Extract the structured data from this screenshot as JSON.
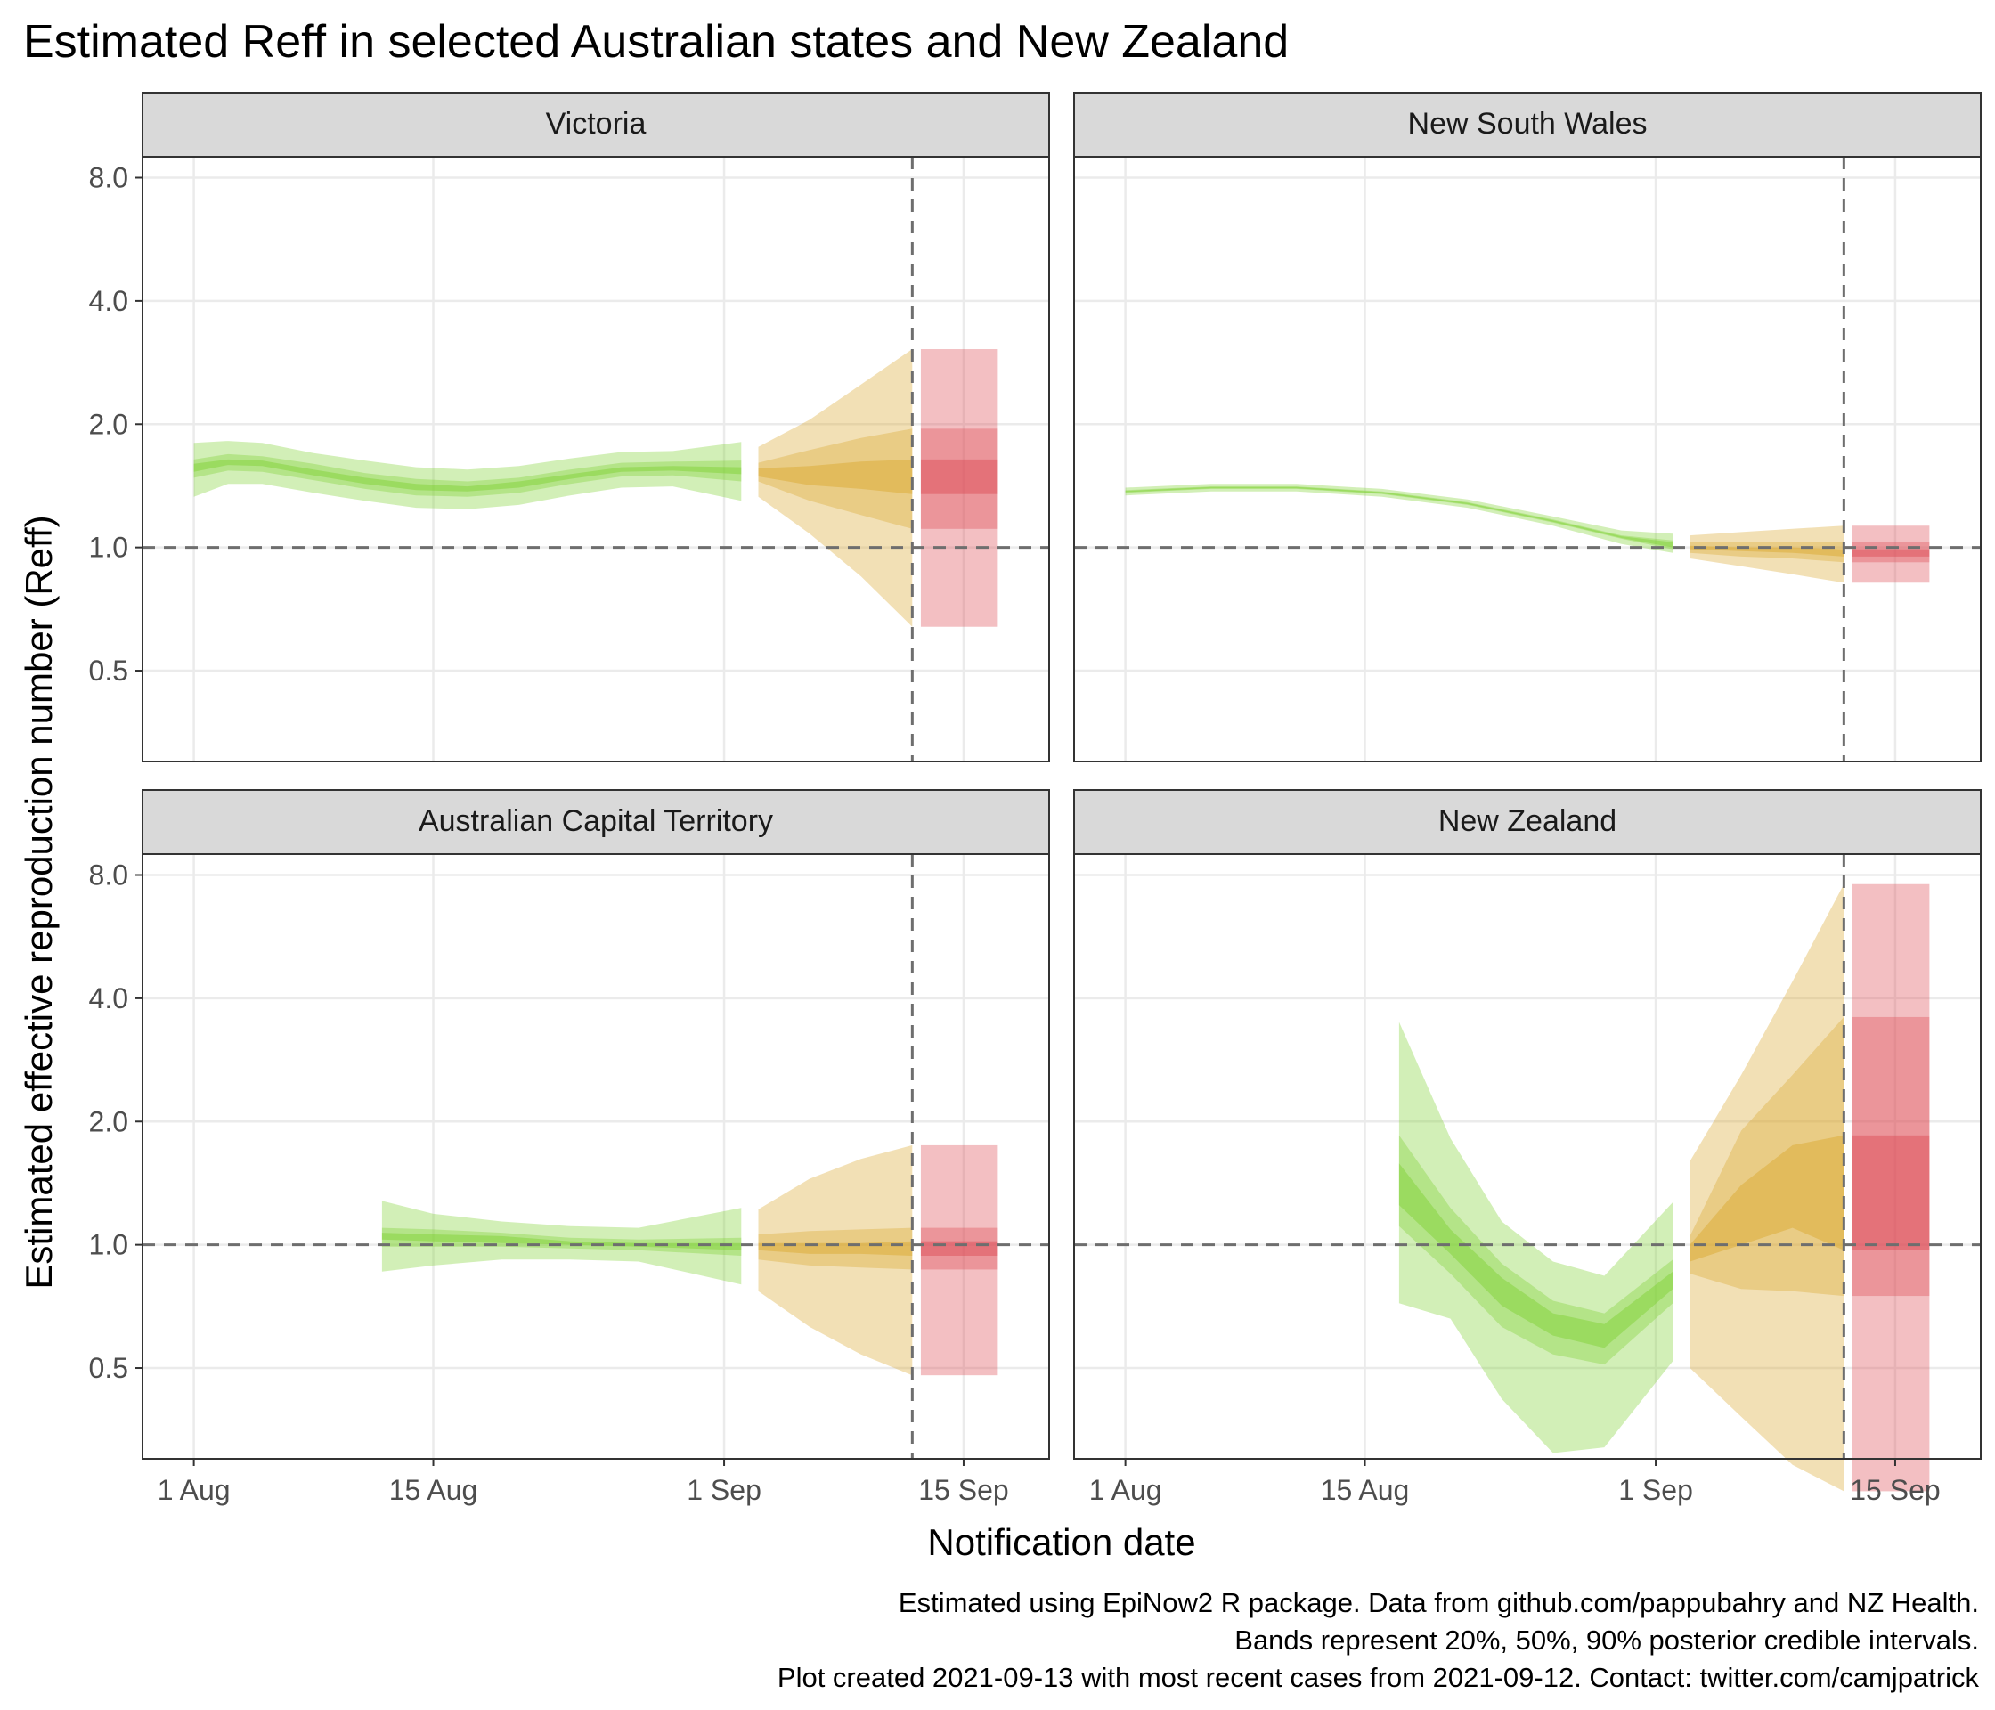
{
  "chart_data": {
    "type": "area",
    "title": "Estimated Reff in selected Australian states and New Zealand",
    "xlabel": "Notification date",
    "ylabel": "Estimated effective reproduction number (Reff)",
    "x_ticks": [
      "1 Aug",
      "15 Aug",
      "1 Sep",
      "15 Sep"
    ],
    "x_tick_dates": [
      "2021-08-01",
      "2021-08-15",
      "2021-09-01",
      "2021-09-15"
    ],
    "y_ticks": [
      "0.5",
      "1.0",
      "2.0",
      "4.0",
      "8.0"
    ],
    "y_tick_values": [
      0.5,
      1.0,
      2.0,
      4.0,
      8.0
    ],
    "y_scale": "log2",
    "xlim": [
      "2021-07-29",
      "2021-09-20"
    ],
    "ylim": [
      0.3,
      9.0
    ],
    "reference_line_y": 1.0,
    "reference_line_x": "2021-09-12",
    "band_colors": {
      "estimate": "#7dd131",
      "estimate_based_on_partial_data": "#d9a62a",
      "forecast": "#dc4751"
    },
    "grid": true,
    "legend": "none",
    "panels": [
      {
        "name": "Victoria",
        "estimate": [
          {
            "date": "2021-08-01",
            "median": 1.57,
            "q5": 1.33,
            "q95": 1.8,
            "q25": 1.48,
            "q75": 1.64,
            "q40": 1.53,
            "q60": 1.6
          },
          {
            "date": "2021-08-03",
            "median": 1.62,
            "q5": 1.43,
            "q95": 1.82,
            "q25": 1.54,
            "q75": 1.69,
            "q40": 1.59,
            "q60": 1.64
          },
          {
            "date": "2021-08-05",
            "median": 1.6,
            "q5": 1.43,
            "q95": 1.8,
            "q25": 1.53,
            "q75": 1.67,
            "q40": 1.58,
            "q60": 1.63
          },
          {
            "date": "2021-08-08",
            "median": 1.53,
            "q5": 1.36,
            "q95": 1.7,
            "q25": 1.46,
            "q75": 1.6,
            "q40": 1.5,
            "q60": 1.55
          },
          {
            "date": "2021-08-11",
            "median": 1.46,
            "q5": 1.3,
            "q95": 1.63,
            "q25": 1.39,
            "q75": 1.52,
            "q40": 1.43,
            "q60": 1.48
          },
          {
            "date": "2021-08-14",
            "median": 1.41,
            "q5": 1.25,
            "q95": 1.57,
            "q25": 1.34,
            "q75": 1.47,
            "q40": 1.38,
            "q60": 1.43
          },
          {
            "date": "2021-08-17",
            "median": 1.39,
            "q5": 1.24,
            "q95": 1.55,
            "q25": 1.33,
            "q75": 1.45,
            "q40": 1.37,
            "q60": 1.41
          },
          {
            "date": "2021-08-20",
            "median": 1.42,
            "q5": 1.27,
            "q95": 1.58,
            "q25": 1.36,
            "q75": 1.48,
            "q40": 1.4,
            "q60": 1.45
          },
          {
            "date": "2021-08-23",
            "median": 1.49,
            "q5": 1.34,
            "q95": 1.65,
            "q25": 1.43,
            "q75": 1.55,
            "q40": 1.47,
            "q60": 1.51
          },
          {
            "date": "2021-08-26",
            "median": 1.55,
            "q5": 1.4,
            "q95": 1.71,
            "q25": 1.49,
            "q75": 1.61,
            "q40": 1.53,
            "q60": 1.57
          },
          {
            "date": "2021-08-29",
            "median": 1.56,
            "q5": 1.41,
            "q95": 1.72,
            "q25": 1.5,
            "q75": 1.62,
            "q40": 1.54,
            "q60": 1.58
          },
          {
            "date": "2021-09-02",
            "median": 1.54,
            "q5": 1.3,
            "q95": 1.81,
            "q25": 1.45,
            "q75": 1.63,
            "q40": 1.51,
            "q60": 1.57
          }
        ],
        "estimate_based_on_partial_data": [
          {
            "date": "2021-09-03",
            "median": 1.53,
            "q5": 1.33,
            "q95": 1.76,
            "q25": 1.45,
            "q75": 1.61,
            "q40": 1.49,
            "q60": 1.56
          },
          {
            "date": "2021-09-06",
            "median": 1.51,
            "q5": 1.08,
            "q95": 2.05,
            "q25": 1.3,
            "q75": 1.73,
            "q40": 1.42,
            "q60": 1.58
          },
          {
            "date": "2021-09-09",
            "median": 1.5,
            "q5": 0.85,
            "q95": 2.5,
            "q25": 1.2,
            "q75": 1.85,
            "q40": 1.39,
            "q60": 1.62
          },
          {
            "date": "2021-09-12",
            "median": 1.49,
            "q5": 0.64,
            "q95": 3.05,
            "q25": 1.11,
            "q75": 1.95,
            "q40": 1.35,
            "q60": 1.64
          }
        ],
        "forecast": {
          "date_start": "2021-09-12.5",
          "date_end": "2021-09-17",
          "median": 1.49,
          "q5": 0.64,
          "q95": 3.05,
          "q25": 1.11,
          "q75": 1.95,
          "q40": 1.35,
          "q60": 1.64
        }
      },
      {
        "name": "New South Wales",
        "estimate": [
          {
            "date": "2021-08-01",
            "median": 1.37,
            "q5": 1.34,
            "q95": 1.4,
            "q25": 1.36,
            "q75": 1.38,
            "q40": 1.365,
            "q60": 1.375
          },
          {
            "date": "2021-08-06",
            "median": 1.4,
            "q5": 1.37,
            "q95": 1.43,
            "q25": 1.39,
            "q75": 1.41,
            "q40": 1.395,
            "q60": 1.405
          },
          {
            "date": "2021-08-11",
            "median": 1.4,
            "q5": 1.37,
            "q95": 1.43,
            "q25": 1.39,
            "q75": 1.41,
            "q40": 1.395,
            "q60": 1.405
          },
          {
            "date": "2021-08-16",
            "median": 1.36,
            "q5": 1.33,
            "q95": 1.39,
            "q25": 1.35,
            "q75": 1.37,
            "q40": 1.355,
            "q60": 1.365
          },
          {
            "date": "2021-08-21",
            "median": 1.28,
            "q5": 1.25,
            "q95": 1.31,
            "q25": 1.27,
            "q75": 1.29,
            "q40": 1.275,
            "q60": 1.285
          },
          {
            "date": "2021-08-26",
            "median": 1.16,
            "q5": 1.13,
            "q95": 1.19,
            "q25": 1.15,
            "q75": 1.17,
            "q40": 1.155,
            "q60": 1.165
          },
          {
            "date": "2021-08-30",
            "median": 1.06,
            "q5": 1.02,
            "q95": 1.1,
            "q25": 1.05,
            "q75": 1.07,
            "q40": 1.055,
            "q60": 1.065
          },
          {
            "date": "2021-09-02",
            "median": 1.01,
            "q5": 0.97,
            "q95": 1.08,
            "q25": 0.99,
            "q75": 1.04,
            "q40": 1.0,
            "q60": 1.03
          }
        ],
        "estimate_based_on_partial_data": [
          {
            "date": "2021-09-03",
            "median": 1.0,
            "q5": 0.94,
            "q95": 1.07,
            "q25": 0.97,
            "q75": 1.03,
            "q40": 0.99,
            "q60": 1.01
          },
          {
            "date": "2021-09-06",
            "median": 0.99,
            "q5": 0.9,
            "q95": 1.09,
            "q25": 0.95,
            "q75": 1.03,
            "q40": 0.98,
            "q60": 1.0
          },
          {
            "date": "2021-09-09",
            "median": 0.98,
            "q5": 0.86,
            "q95": 1.11,
            "q25": 0.94,
            "q75": 1.03,
            "q40": 0.97,
            "q60": 1.0
          },
          {
            "date": "2021-09-12",
            "median": 0.97,
            "q5": 0.82,
            "q95": 1.13,
            "q25": 0.92,
            "q75": 1.03,
            "q40": 0.95,
            "q60": 0.99
          }
        ],
        "forecast": {
          "date_start": "2021-09-12.5",
          "date_end": "2021-09-17",
          "median": 0.97,
          "q5": 0.82,
          "q95": 1.13,
          "q25": 0.92,
          "q75": 1.03,
          "q40": 0.95,
          "q60": 0.99
        }
      },
      {
        "name": "Australian Capital Territory",
        "estimate": [
          {
            "date": "2021-08-12",
            "median": 1.05,
            "q5": 0.86,
            "q95": 1.28,
            "q25": 0.99,
            "q75": 1.1,
            "q40": 1.03,
            "q60": 1.07
          },
          {
            "date": "2021-08-15",
            "median": 1.04,
            "q5": 0.89,
            "q95": 1.19,
            "q25": 0.99,
            "q75": 1.09,
            "q40": 1.02,
            "q60": 1.06
          },
          {
            "date": "2021-08-19",
            "median": 1.03,
            "q5": 0.92,
            "q95": 1.14,
            "q25": 0.99,
            "q75": 1.07,
            "q40": 1.01,
            "q60": 1.05
          },
          {
            "date": "2021-08-23",
            "median": 1.01,
            "q5": 0.92,
            "q95": 1.11,
            "q25": 0.98,
            "q75": 1.04,
            "q40": 1.0,
            "q60": 1.02
          },
          {
            "date": "2021-08-27",
            "median": 1.0,
            "q5": 0.91,
            "q95": 1.1,
            "q25": 0.97,
            "q75": 1.03,
            "q40": 0.99,
            "q60": 1.01
          },
          {
            "date": "2021-09-02",
            "median": 0.99,
            "q5": 0.8,
            "q95": 1.23,
            "q25": 0.94,
            "q75": 1.04,
            "q40": 0.97,
            "q60": 1.01
          }
        ],
        "estimate_based_on_partial_data": [
          {
            "date": "2021-09-03",
            "median": 0.99,
            "q5": 0.77,
            "q95": 1.22,
            "q25": 0.92,
            "q75": 1.06,
            "q40": 0.97,
            "q60": 1.01
          },
          {
            "date": "2021-09-06",
            "median": 0.98,
            "q5": 0.63,
            "q95": 1.45,
            "q25": 0.89,
            "q75": 1.08,
            "q40": 0.95,
            "q60": 1.01
          },
          {
            "date": "2021-09-09",
            "median": 0.98,
            "q5": 0.54,
            "q95": 1.62,
            "q25": 0.88,
            "q75": 1.09,
            "q40": 0.95,
            "q60": 1.01
          },
          {
            "date": "2021-09-12",
            "median": 0.98,
            "q5": 0.48,
            "q95": 1.75,
            "q25": 0.87,
            "q75": 1.1,
            "q40": 0.94,
            "q60": 1.02
          }
        ],
        "forecast": {
          "date_start": "2021-09-12.5",
          "date_end": "2021-09-17",
          "median": 0.98,
          "q5": 0.48,
          "q95": 1.75,
          "q25": 0.87,
          "q75": 1.1,
          "q40": 0.94,
          "q60": 1.02
        }
      },
      {
        "name": "New Zealand",
        "estimate": [
          {
            "date": "2021-08-17",
            "median": 1.4,
            "q5": 0.72,
            "q95": 3.5,
            "q25": 1.11,
            "q75": 1.85,
            "q40": 1.25,
            "q60": 1.58
          },
          {
            "date": "2021-08-20",
            "median": 1.02,
            "q5": 0.66,
            "q95": 1.82,
            "q25": 0.85,
            "q75": 1.23,
            "q40": 0.95,
            "q60": 1.09
          },
          {
            "date": "2021-08-23",
            "median": 0.77,
            "q5": 0.42,
            "q95": 1.14,
            "q25": 0.63,
            "q75": 0.9,
            "q40": 0.71,
            "q60": 0.83
          },
          {
            "date": "2021-08-26",
            "median": 0.63,
            "q5": 0.31,
            "q95": 0.91,
            "q25": 0.54,
            "q75": 0.73,
            "q40": 0.6,
            "q60": 0.68
          },
          {
            "date": "2021-08-29",
            "median": 0.6,
            "q5": 0.32,
            "q95": 0.84,
            "q25": 0.51,
            "q75": 0.68,
            "q40": 0.56,
            "q60": 0.64
          },
          {
            "date": "2021-09-02",
            "median": 0.82,
            "q5": 0.52,
            "q95": 1.27,
            "q25": 0.72,
            "q75": 0.92,
            "q40": 0.78,
            "q60": 0.86
          }
        ],
        "estimate_based_on_partial_data": [
          {
            "date": "2021-09-03",
            "median": 0.98,
            "q5": 0.5,
            "q95": 1.6,
            "q25": 0.85,
            "q75": 1.05,
            "q40": 0.91,
            "q60": 1.0
          },
          {
            "date": "2021-09-06",
            "median": 1.25,
            "q5": 0.38,
            "q95": 2.6,
            "q25": 0.78,
            "q75": 1.9,
            "q40": 1.0,
            "q60": 1.4
          },
          {
            "date": "2021-09-09",
            "median": 1.48,
            "q5": 0.29,
            "q95": 4.4,
            "q25": 0.77,
            "q75": 2.6,
            "q40": 1.1,
            "q60": 1.75
          },
          {
            "date": "2021-09-12",
            "median": 1.5,
            "q5": 0.25,
            "q95": 7.6,
            "q25": 0.75,
            "q75": 3.6,
            "q40": 0.97,
            "q60": 1.85
          }
        ],
        "forecast": {
          "date_start": "2021-09-12.5",
          "date_end": "2021-09-17",
          "median": 1.5,
          "q5": 0.25,
          "q95": 7.6,
          "q25": 0.75,
          "q75": 3.6,
          "q40": 0.97,
          "q60": 1.85
        }
      }
    ]
  },
  "caption": [
    "Estimated using EpiNow2 R package. Data from github.com/pappubahry and NZ Health.",
    "Bands represent 20%, 50%, 90% posterior credible intervals.",
    "Plot created 2021-09-13 with most recent cases from 2021-09-12. Contact: twitter.com/camjpatrick"
  ]
}
